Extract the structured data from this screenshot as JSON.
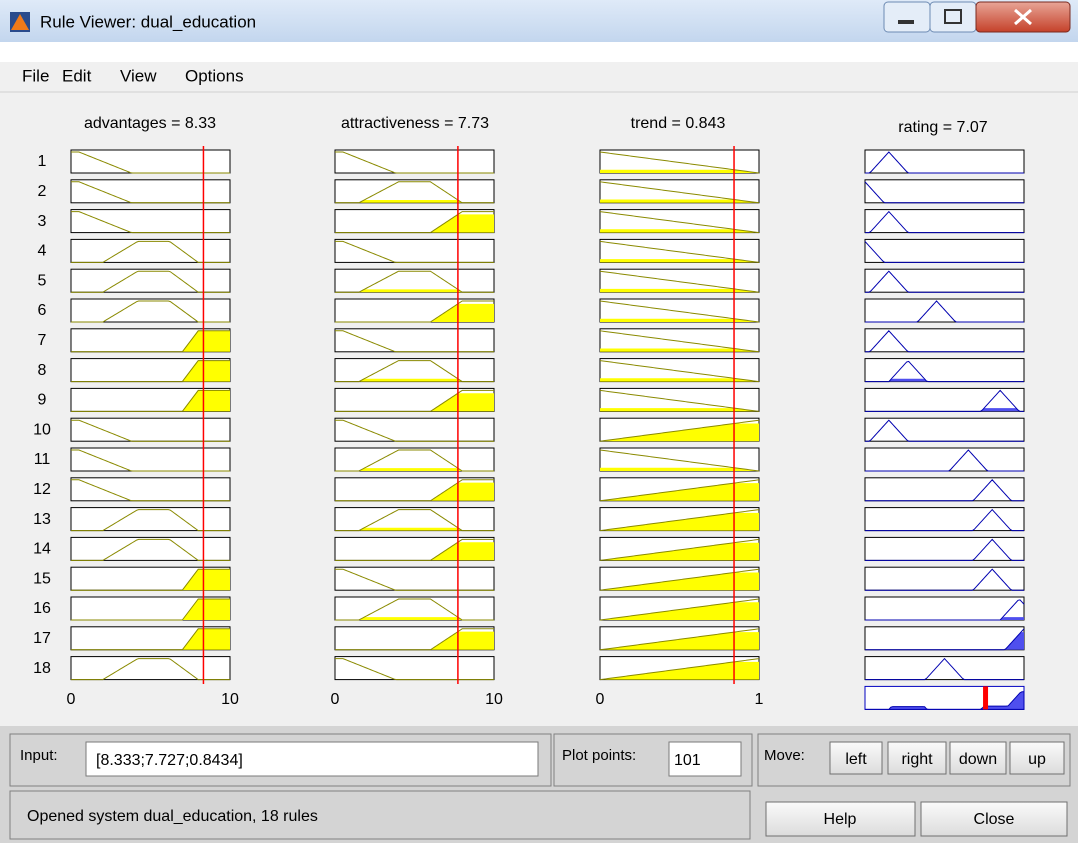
{
  "window": {
    "title": "Rule Viewer: dual_education"
  },
  "menu": [
    "File",
    "Edit",
    "View",
    "Options"
  ],
  "variables": [
    {
      "label": "advantages = 8.33",
      "min": "0",
      "max": "10"
    },
    {
      "label": "attractiveness = 7.73",
      "min": "0",
      "max": "10"
    },
    {
      "label": "trend = 0.843",
      "min": "0",
      "max": "1"
    },
    {
      "label": "rating = 7.07"
    }
  ],
  "rules": [
    "1",
    "2",
    "3",
    "4",
    "5",
    "6",
    "7",
    "8",
    "9",
    "10",
    "11",
    "12",
    "13",
    "14",
    "15",
    "16",
    "17",
    "18"
  ],
  "input": {
    "label": "Input:",
    "value": "[8.333;7.727;0.8434]"
  },
  "plot_points": {
    "label": "Plot points:",
    "value": "101"
  },
  "move": {
    "label": "Move:",
    "buttons": [
      "left",
      "right",
      "down",
      "up"
    ]
  },
  "status": "Opened system dual_education, 18 rules",
  "buttons": [
    "Help",
    "Close"
  ]
}
